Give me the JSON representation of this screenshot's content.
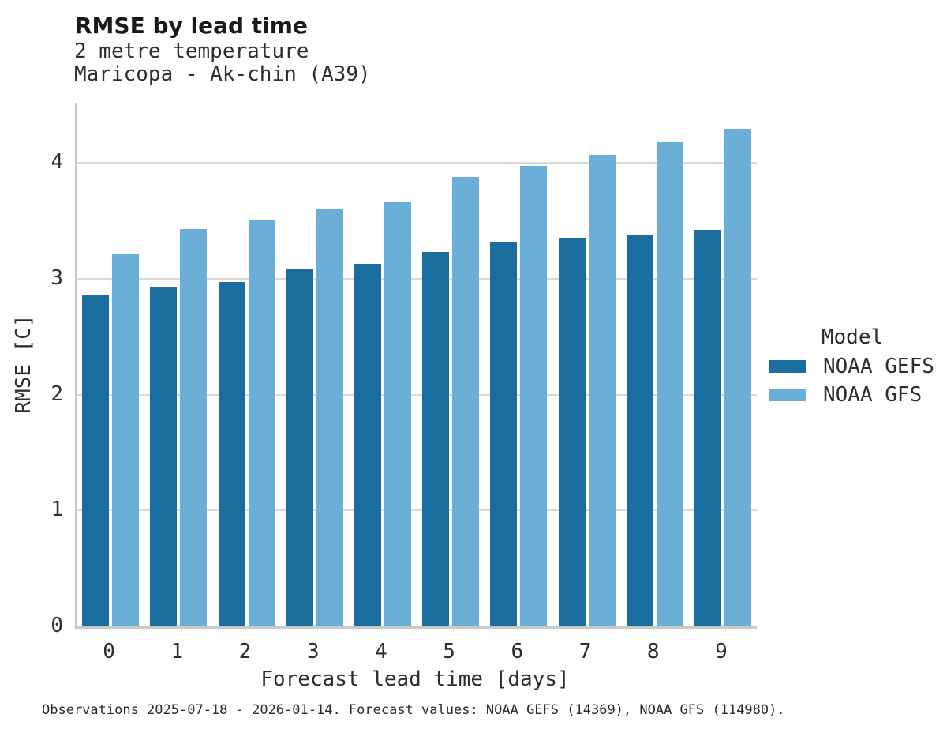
{
  "header": {
    "title": "RMSE by lead time",
    "subtitle_line1": "2 metre temperature",
    "subtitle_line2": "Maricopa - Ak-chin (A39)"
  },
  "chart_data": {
    "type": "bar",
    "title": "RMSE by lead time",
    "subtitle": [
      "2 metre temperature",
      "Maricopa - Ak-chin (A39)"
    ],
    "categories": [
      "0",
      "1",
      "2",
      "3",
      "4",
      "5",
      "6",
      "7",
      "8",
      "9"
    ],
    "series": [
      {
        "name": "NOAA GEFS",
        "color": "#1b6d9d",
        "values": [
          2.86,
          2.93,
          2.97,
          3.08,
          3.13,
          3.23,
          3.32,
          3.35,
          3.38,
          3.42
        ]
      },
      {
        "name": "NOAA GFS",
        "color": "#6bafd8",
        "values": [
          3.21,
          3.43,
          3.5,
          3.6,
          3.66,
          3.88,
          3.97,
          4.07,
          4.18,
          4.29
        ]
      }
    ],
    "xlabel": "Forecast lead time [days]",
    "ylabel": "RMSE [C]",
    "ylim": [
      0,
      4.52
    ],
    "yticks": [
      0,
      1,
      2,
      3,
      4
    ],
    "grid": "horizontal",
    "legend": {
      "title": "Model",
      "position": "right-center"
    }
  },
  "footer": {
    "caption": "Observations 2025-07-18 - 2026-01-14. Forecast values: NOAA GEFS (14369), NOAA GFS (114980)."
  }
}
